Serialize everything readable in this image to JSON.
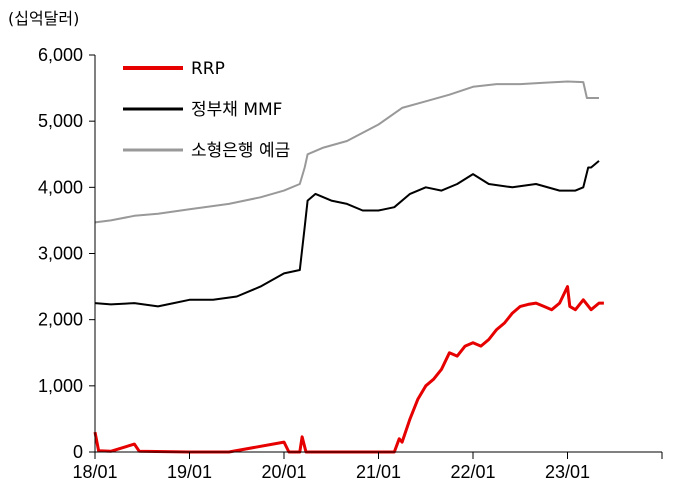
{
  "chart_data": {
    "type": "line",
    "unit_label": "(십억달러)",
    "x_start": "2018-01",
    "x_end": "2024-01",
    "xticks": [
      "18/01",
      "19/01",
      "20/01",
      "21/01",
      "22/01",
      "23/01"
    ],
    "ylim": [
      0,
      6000
    ],
    "yticks": [
      "0",
      "1,000",
      "2,000",
      "3,000",
      "4,000",
      "5,000",
      "6,000"
    ],
    "legend_position": "top-left",
    "grid": false,
    "series": [
      {
        "name": "RRP",
        "color": "#e60000",
        "points": [
          [
            "2018-01",
            300
          ],
          [
            "2018-01-15",
            20
          ],
          [
            "2018-03",
            10
          ],
          [
            "2018-06",
            120
          ],
          [
            "2018-06-20",
            10
          ],
          [
            "2019-01",
            0
          ],
          [
            "2019-06",
            0
          ],
          [
            "2020-01",
            150
          ],
          [
            "2020-01-20",
            0
          ],
          [
            "2020-03",
            0
          ],
          [
            "2020-03-10",
            230
          ],
          [
            "2020-03-25",
            0
          ],
          [
            "2021-01",
            0
          ],
          [
            "2021-03",
            0
          ],
          [
            "2021-03-20",
            200
          ],
          [
            "2021-04",
            150
          ],
          [
            "2021-05",
            500
          ],
          [
            "2021-06",
            800
          ],
          [
            "2021-07",
            1000
          ],
          [
            "2021-08",
            1100
          ],
          [
            "2021-09",
            1250
          ],
          [
            "2021-10",
            1500
          ],
          [
            "2021-11",
            1450
          ],
          [
            "2021-12",
            1600
          ],
          [
            "2022-01",
            1650
          ],
          [
            "2022-02",
            1600
          ],
          [
            "2022-03",
            1700
          ],
          [
            "2022-04",
            1850
          ],
          [
            "2022-05",
            1950
          ],
          [
            "2022-06",
            2100
          ],
          [
            "2022-07",
            2200
          ],
          [
            "2022-08",
            2230
          ],
          [
            "2022-09",
            2250
          ],
          [
            "2022-10",
            2200
          ],
          [
            "2022-11",
            2150
          ],
          [
            "2022-12",
            2250
          ],
          [
            "2023-01",
            2500
          ],
          [
            "2023-01-10",
            2200
          ],
          [
            "2023-02",
            2150
          ],
          [
            "2023-03",
            2300
          ],
          [
            "2023-04",
            2150
          ],
          [
            "2023-05",
            2250
          ],
          [
            "2023-05-20",
            2250
          ]
        ]
      },
      {
        "name": "정부채 MMF",
        "color": "#000000",
        "points": [
          [
            "2018-01",
            2250
          ],
          [
            "2018-03",
            2230
          ],
          [
            "2018-06",
            2250
          ],
          [
            "2018-09",
            2200
          ],
          [
            "2018-11",
            2250
          ],
          [
            "2019-01",
            2300
          ],
          [
            "2019-04",
            2300
          ],
          [
            "2019-07",
            2350
          ],
          [
            "2019-10",
            2500
          ],
          [
            "2020-01",
            2700
          ],
          [
            "2020-03",
            2750
          ],
          [
            "2020-03-20",
            3400
          ],
          [
            "2020-04",
            3800
          ],
          [
            "2020-05",
            3900
          ],
          [
            "2020-07",
            3800
          ],
          [
            "2020-09",
            3750
          ],
          [
            "2020-11",
            3650
          ],
          [
            "2021-01",
            3650
          ],
          [
            "2021-03",
            3700
          ],
          [
            "2021-05",
            3900
          ],
          [
            "2021-07",
            4000
          ],
          [
            "2021-09",
            3950
          ],
          [
            "2021-11",
            4050
          ],
          [
            "2022-01",
            4200
          ],
          [
            "2022-03",
            4050
          ],
          [
            "2022-06",
            4000
          ],
          [
            "2022-09",
            4050
          ],
          [
            "2022-12",
            3950
          ],
          [
            "2023-02",
            3950
          ],
          [
            "2023-03",
            4000
          ],
          [
            "2023-03-20",
            4300
          ],
          [
            "2023-04",
            4300
          ],
          [
            "2023-05",
            4400
          ]
        ]
      },
      {
        "name": "소형은행 예금",
        "color": "#999999",
        "points": [
          [
            "2018-01",
            3470
          ],
          [
            "2018-03",
            3500
          ],
          [
            "2018-06",
            3570
          ],
          [
            "2018-09",
            3600
          ],
          [
            "2019-01",
            3670
          ],
          [
            "2019-06",
            3750
          ],
          [
            "2019-10",
            3850
          ],
          [
            "2020-01",
            3950
          ],
          [
            "2020-03",
            4050
          ],
          [
            "2020-03-20",
            4300
          ],
          [
            "2020-04",
            4500
          ],
          [
            "2020-06",
            4600
          ],
          [
            "2020-09",
            4700
          ],
          [
            "2021-01",
            4950
          ],
          [
            "2021-04",
            5200
          ],
          [
            "2021-07",
            5300
          ],
          [
            "2021-10",
            5400
          ],
          [
            "2022-01",
            5520
          ],
          [
            "2022-04",
            5560
          ],
          [
            "2022-07",
            5560
          ],
          [
            "2022-10",
            5580
          ],
          [
            "2023-01",
            5600
          ],
          [
            "2023-03",
            5590
          ],
          [
            "2023-03-15",
            5350
          ],
          [
            "2023-05",
            5350
          ]
        ]
      }
    ]
  }
}
